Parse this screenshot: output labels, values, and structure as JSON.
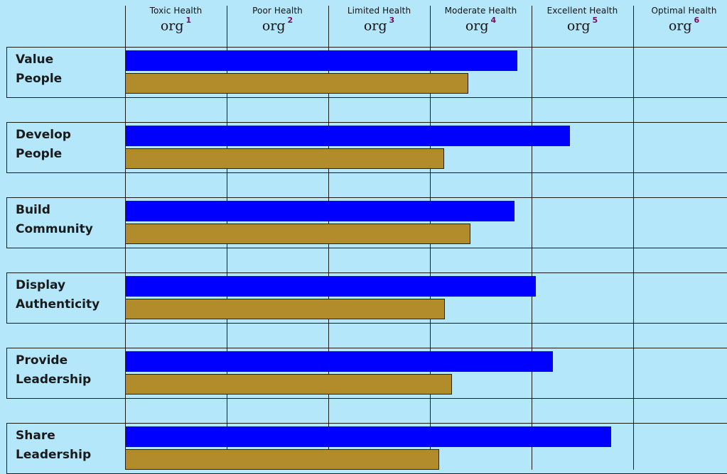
{
  "chart_data": {
    "type": "bar",
    "orientation": "horizontal",
    "scale_min": 0,
    "scale_max": 6,
    "columns": [
      {
        "label": "Toxic Health",
        "org": "org",
        "num": "1"
      },
      {
        "label": "Poor Health",
        "org": "org",
        "num": "2"
      },
      {
        "label": "Limited Health",
        "org": "org",
        "num": "3"
      },
      {
        "label": "Moderate Health",
        "org": "org",
        "num": "4"
      },
      {
        "label": "Excellent Health",
        "org": "org",
        "num": "5"
      },
      {
        "label": "Optimal Health",
        "org": "org",
        "num": "6"
      }
    ],
    "categories": [
      [
        "Value",
        "People"
      ],
      [
        "Develop",
        "People"
      ],
      [
        "Build",
        "Community"
      ],
      [
        "Display",
        "Authenticity"
      ],
      [
        "Provide",
        "Leadership"
      ],
      [
        "Share",
        "Leadership"
      ]
    ],
    "series": [
      {
        "color": "#0000ff",
        "values": [
          3.86,
          4.38,
          3.83,
          4.04,
          4.21,
          4.78
        ]
      },
      {
        "color": "#b28c2a",
        "values": [
          3.38,
          3.14,
          3.4,
          3.15,
          3.22,
          3.09
        ]
      }
    ],
    "grid": true,
    "legend": "none"
  }
}
